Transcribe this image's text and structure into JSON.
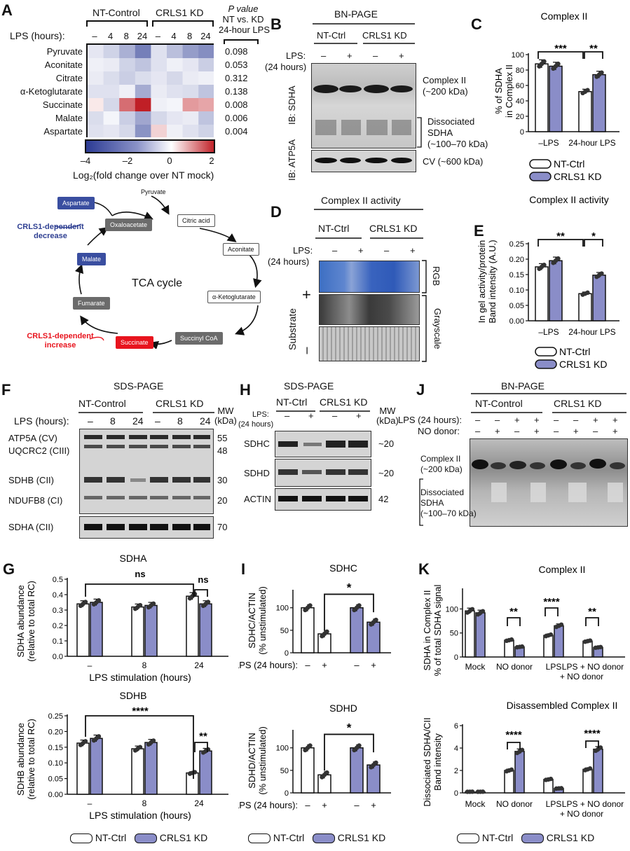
{
  "panels": {
    "A": {
      "label": "A",
      "group1": "NT-Control",
      "group2": "CRLS1  KD",
      "lps_label": "LPS (hours):",
      "lps_ticks": [
        "–",
        "4",
        "8",
        "24",
        "–",
        "4",
        "8",
        "24"
      ],
      "pval_title_1": "P value",
      "pval_title_2": "NT vs. KD",
      "pval_title_3": "24-hour LPS",
      "rows": [
        "Pyruvate",
        "Aconitate",
        "Citrate",
        "α-Ketoglutarate",
        "Succinate",
        "Malate",
        "Aspartate"
      ],
      "pvalues": [
        "0.098",
        "0.053",
        "0.312",
        "0.138",
        "0.008",
        "0.006",
        "0.004"
      ],
      "colorbar_ticks": [
        "–4",
        "–2",
        "0",
        "2"
      ],
      "colorbar_label": "Log₂(fold change over NT mock)",
      "heat": [
        [
          -0.5,
          -0.9,
          -1.6,
          -2.6,
          -0.6,
          -1.3,
          -2.0,
          -2.3
        ],
        [
          -0.3,
          -0.4,
          -0.9,
          -1.2,
          -0.6,
          -0.3,
          -0.5,
          -1.0
        ],
        [
          -0.4,
          -0.7,
          -1.0,
          -0.7,
          -0.5,
          -0.8,
          -0.4,
          -0.3
        ],
        [
          -0.6,
          -0.6,
          -0.3,
          -1.7,
          -0.4,
          -0.6,
          -0.7,
          -1.2
        ],
        [
          0.2,
          -0.8,
          1.3,
          2.0,
          -0.3,
          -0.2,
          0.9,
          0.8
        ],
        [
          -0.7,
          -0.2,
          -1.0,
          -1.8,
          -0.8,
          -0.5,
          -0.4,
          -1.2
        ],
        [
          -0.6,
          -0.5,
          -0.8,
          -2.2,
          0.4,
          -0.3,
          -0.6,
          -0.9
        ]
      ]
    },
    "tca": {
      "title": "TCA cycle",
      "nodes": {
        "pyruvate": "Pyruvate",
        "oxaloacetate": "Oxaloacetate",
        "citric": "Citric acid",
        "aconitate": "Aconitate",
        "akg": "α-Ketoglutarate",
        "succinylcoa": "Succinyl CoA",
        "succinate": "Succinate",
        "fumarate": "Fumarate",
        "malate": "Malate",
        "aspartate": "Aspartate"
      },
      "decrease_1": "CRLS1-dependent",
      "decrease_2": "decrease",
      "increase_1": "CRLS1-dependent",
      "increase_2": "increase"
    },
    "B": {
      "label": "B",
      "title": "BN-PAGE",
      "group1": "NT-Ctrl",
      "group2": "CRLS1 KD",
      "lps_1": "LPS:",
      "lps_2": "(24 hours)",
      "ticks": [
        "–",
        "+",
        "–",
        "+"
      ],
      "ib1": "IB:",
      "ib1b": "SDHA",
      "ib2": "IB:",
      "ib2b": "ATP5A",
      "band1_1": "Complex II",
      "band1_2": "(~200 kDa)",
      "band2_1": "Dissociated",
      "band2_2": "SDHA",
      "band2_3": "(~100–70 kDa)",
      "band3": "CV (~600 kDa)"
    },
    "C": {
      "label": "C",
      "title": "Complex  II",
      "ylabel_1": "% of SDHA",
      "ylabel_2": "in Complex II",
      "yticks": [
        "0",
        "20",
        "40",
        "60",
        "80",
        "100"
      ],
      "xcats": [
        "–LPS",
        "24-hour LPS"
      ],
      "sig": [
        "***",
        "**"
      ],
      "legend": [
        "NT-Ctrl",
        "CRLS1 KD"
      ]
    },
    "D": {
      "label": "D",
      "title": "Complex II activity",
      "group1": "NT-Ctrl",
      "group2": "CRLS1 KD",
      "lps_1": "LPS:",
      "lps_2": "(24 hours)",
      "ticks": [
        "–",
        "+",
        "–",
        "+"
      ],
      "substrate": "Substrate",
      "plus": "+",
      "minus": "–",
      "rgb": "RGB",
      "gray": "Grayscale"
    },
    "E": {
      "label": "E",
      "title": "Complex II activity",
      "ylabel_1": "In gel activity/protein",
      "ylabel_2": "Band intensity (A.U.)",
      "yticks": [
        "0.00",
        "0.05",
        "0.10",
        "0.15",
        "0.20",
        "0.25"
      ],
      "xcats": [
        "–LPS",
        "24-hour LPS"
      ],
      "sig": [
        "**",
        "*"
      ],
      "legend": [
        "NT-Ctrl",
        "CRLS1 KD"
      ]
    },
    "F": {
      "label": "F",
      "title": "SDS-PAGE",
      "group1": "NT-Control",
      "group2": "CRLS1 KD",
      "lps": "LPS (hours):",
      "ticks": [
        "–",
        "8",
        "24",
        "–",
        "8",
        "24"
      ],
      "mw_1": "MW",
      "mw_2": "(kDa)",
      "bands": [
        "ATP5A (CV)",
        "UQCRC2 (CIII)",
        "SDHB (CII)",
        "NDUFB8 (CI)",
        "SDHA (CII)"
      ],
      "mws": [
        "55",
        "48",
        "30",
        "20",
        "70"
      ]
    },
    "H": {
      "label": "H",
      "title": "SDS-PAGE",
      "group1": "NT-Ctrl",
      "group2": "CRLS1 KD",
      "lps_1": "LPS:",
      "lps_2": "(24 hours)",
      "ticks": [
        "–",
        "+",
        "–",
        "+"
      ],
      "mw_1": "MW",
      "mw_2": "(kDa)",
      "bands": [
        "SDHC",
        "SDHD",
        "ACTIN"
      ],
      "mws": [
        "~20",
        "~20",
        "42"
      ]
    },
    "J": {
      "label": "J",
      "title": "BN-PAGE",
      "group1": "NT-Control",
      "group2": "CRLS1 KD",
      "lps": "LPS (24 hours):",
      "no": "NO donor:",
      "lps_ticks": [
        "–",
        "–",
        "+",
        "+",
        "–",
        "–",
        "+",
        "+"
      ],
      "no_ticks": [
        "–",
        "+",
        "–",
        "+",
        "–",
        "+",
        "–",
        "+"
      ],
      "band1_1": "Complex II",
      "band1_2": "(~200 kDa)",
      "band2_1": "Dissociated",
      "band2_2": "SDHA",
      "band2_3": "(~100–70 kDa)"
    },
    "G": {
      "label": "G",
      "title1": "SDHA",
      "title2": "SDHB",
      "ylabel1_1": "SDHA abundance",
      "ylabel1_2": "(relative to total RC)",
      "ylabel2_1": "SDHB abundance",
      "ylabel2_2": "(relative to total RC)",
      "yticks1": [
        "0.0",
        "0.1",
        "0.2",
        "0.3",
        "0.4",
        "0.5"
      ],
      "yticks2": [
        "0.00",
        "0.05",
        "0.10",
        "0.15",
        "0.20",
        "0.25"
      ],
      "xcats": [
        "–",
        "8",
        "24"
      ],
      "xlabel": "LPS stimulation (hours)",
      "sig1": [
        "ns",
        "ns"
      ],
      "sig2": [
        "****",
        "**"
      ],
      "legend": [
        "NT-Ctrl",
        "CRLS1 KD"
      ]
    },
    "I": {
      "label": "I",
      "title1": "SDHC",
      "title2": "SDHD",
      "ylabel1_1": "SDHC/ACTIN",
      "ylabel1_2": "(% unstimulated)",
      "ylabel2_1": "SDHD/ACTIN",
      "ylabel2_2": "(% unstimulated)",
      "yticks": [
        "0",
        "50",
        "100"
      ],
      "lps": "LPS (24 hours):",
      "ticks": [
        "–",
        "+",
        "–",
        "+"
      ],
      "sig": "*",
      "legend": [
        "NT-Ctrl",
        "CRLS1 KD"
      ]
    },
    "K": {
      "label": "K",
      "title1": "Complex II",
      "title2": "Disassembled Complex II",
      "ylabel1_1": "SDHA in Complex II",
      "ylabel1_2": "% of total SDHA signal",
      "ylabel2_1": "Dissociated SDHA/CII",
      "ylabel2_2": "Band intensity",
      "yticks1": [
        "0",
        "50",
        "100"
      ],
      "yticks2": [
        "0",
        "2",
        "4",
        "6"
      ],
      "xcats": [
        "Mock",
        "NO donor",
        "LPS",
        "LPS"
      ],
      "xcat_extra": "+ NO donor",
      "sig1": [
        "**",
        "****",
        "**"
      ],
      "sig2": [
        "****",
        "****"
      ],
      "legend": [
        "NT-Ctrl",
        "CRLS1 KD"
      ]
    }
  },
  "chart_data": [
    {
      "type": "heatmap",
      "title": "",
      "rows": [
        "Pyruvate",
        "Aconitate",
        "Citrate",
        "α-Ketoglutarate",
        "Succinate",
        "Malate",
        "Aspartate"
      ],
      "columns": [
        "NT –",
        "NT 4",
        "NT 8",
        "NT 24",
        "KD –",
        "KD 4",
        "KD 8",
        "KD 24"
      ],
      "range": [
        -4,
        2
      ]
    },
    {
      "type": "bar",
      "title": "Complex  II",
      "categories": [
        "–LPS",
        "24-hour LPS"
      ],
      "series": [
        {
          "name": "NT-Ctrl",
          "values": [
            88,
            52
          ]
        },
        {
          "name": "CRLS1 KD",
          "values": [
            85,
            74
          ]
        }
      ],
      "ylim": [
        0,
        100
      ],
      "ylabel": "% of SDHA in Complex II"
    },
    {
      "type": "bar",
      "title": "Complex II activity",
      "categories": [
        "–LPS",
        "24-hour LPS"
      ],
      "series": [
        {
          "name": "NT-Ctrl",
          "values": [
            0.175,
            0.088
          ]
        },
        {
          "name": "CRLS1 KD",
          "values": [
            0.195,
            0.148
          ]
        }
      ],
      "ylim": [
        0,
        0.25
      ]
    },
    {
      "type": "bar",
      "title": "SDHA",
      "categories": [
        "–",
        "8",
        "24"
      ],
      "series": [
        {
          "name": "NT-Ctrl",
          "values": [
            0.34,
            0.32,
            0.39
          ]
        },
        {
          "name": "CRLS1 KD",
          "values": [
            0.35,
            0.33,
            0.34
          ]
        }
      ],
      "ylim": [
        0,
        0.5
      ]
    },
    {
      "type": "bar",
      "title": "SDHB",
      "categories": [
        "–",
        "8",
        "24"
      ],
      "series": [
        {
          "name": "NT-Ctrl",
          "values": [
            0.163,
            0.145,
            0.068
          ]
        },
        {
          "name": "CRLS1 KD",
          "values": [
            0.178,
            0.165,
            0.138
          ]
        }
      ],
      "ylim": [
        0,
        0.25
      ]
    },
    {
      "type": "bar",
      "title": "SDHC",
      "categories": [
        "–",
        "+",
        "–",
        "+"
      ],
      "series": [
        {
          "name": "values",
          "values": [
            100,
            42,
            100,
            68
          ]
        }
      ],
      "ylim": [
        0,
        140
      ]
    },
    {
      "type": "bar",
      "title": "SDHD",
      "categories": [
        "–",
        "+",
        "–",
        "+"
      ],
      "series": [
        {
          "name": "values",
          "values": [
            100,
            40,
            100,
            62
          ]
        }
      ],
      "ylim": [
        0,
        140
      ]
    },
    {
      "type": "bar",
      "title": "Complex II",
      "categories": [
        "Mock",
        "NO donor",
        "LPS",
        "LPS + NO donor"
      ],
      "series": [
        {
          "name": "NT-Ctrl",
          "values": [
            96,
            35,
            45,
            33
          ]
        },
        {
          "name": "CRLS1 KD",
          "values": [
            92,
            21,
            65,
            20
          ]
        }
      ],
      "ylim": [
        0,
        140
      ]
    },
    {
      "type": "bar",
      "title": "Disassembled Complex II",
      "categories": [
        "Mock",
        "NO donor",
        "LPS",
        "LPS + NO donor"
      ],
      "series": [
        {
          "name": "NT-Ctrl",
          "values": [
            0.1,
            2.0,
            1.2,
            2.1
          ]
        },
        {
          "name": "CRLS1 KD",
          "values": [
            0.1,
            3.7,
            0.4,
            3.9
          ]
        }
      ],
      "ylim": [
        0,
        6
      ]
    }
  ]
}
